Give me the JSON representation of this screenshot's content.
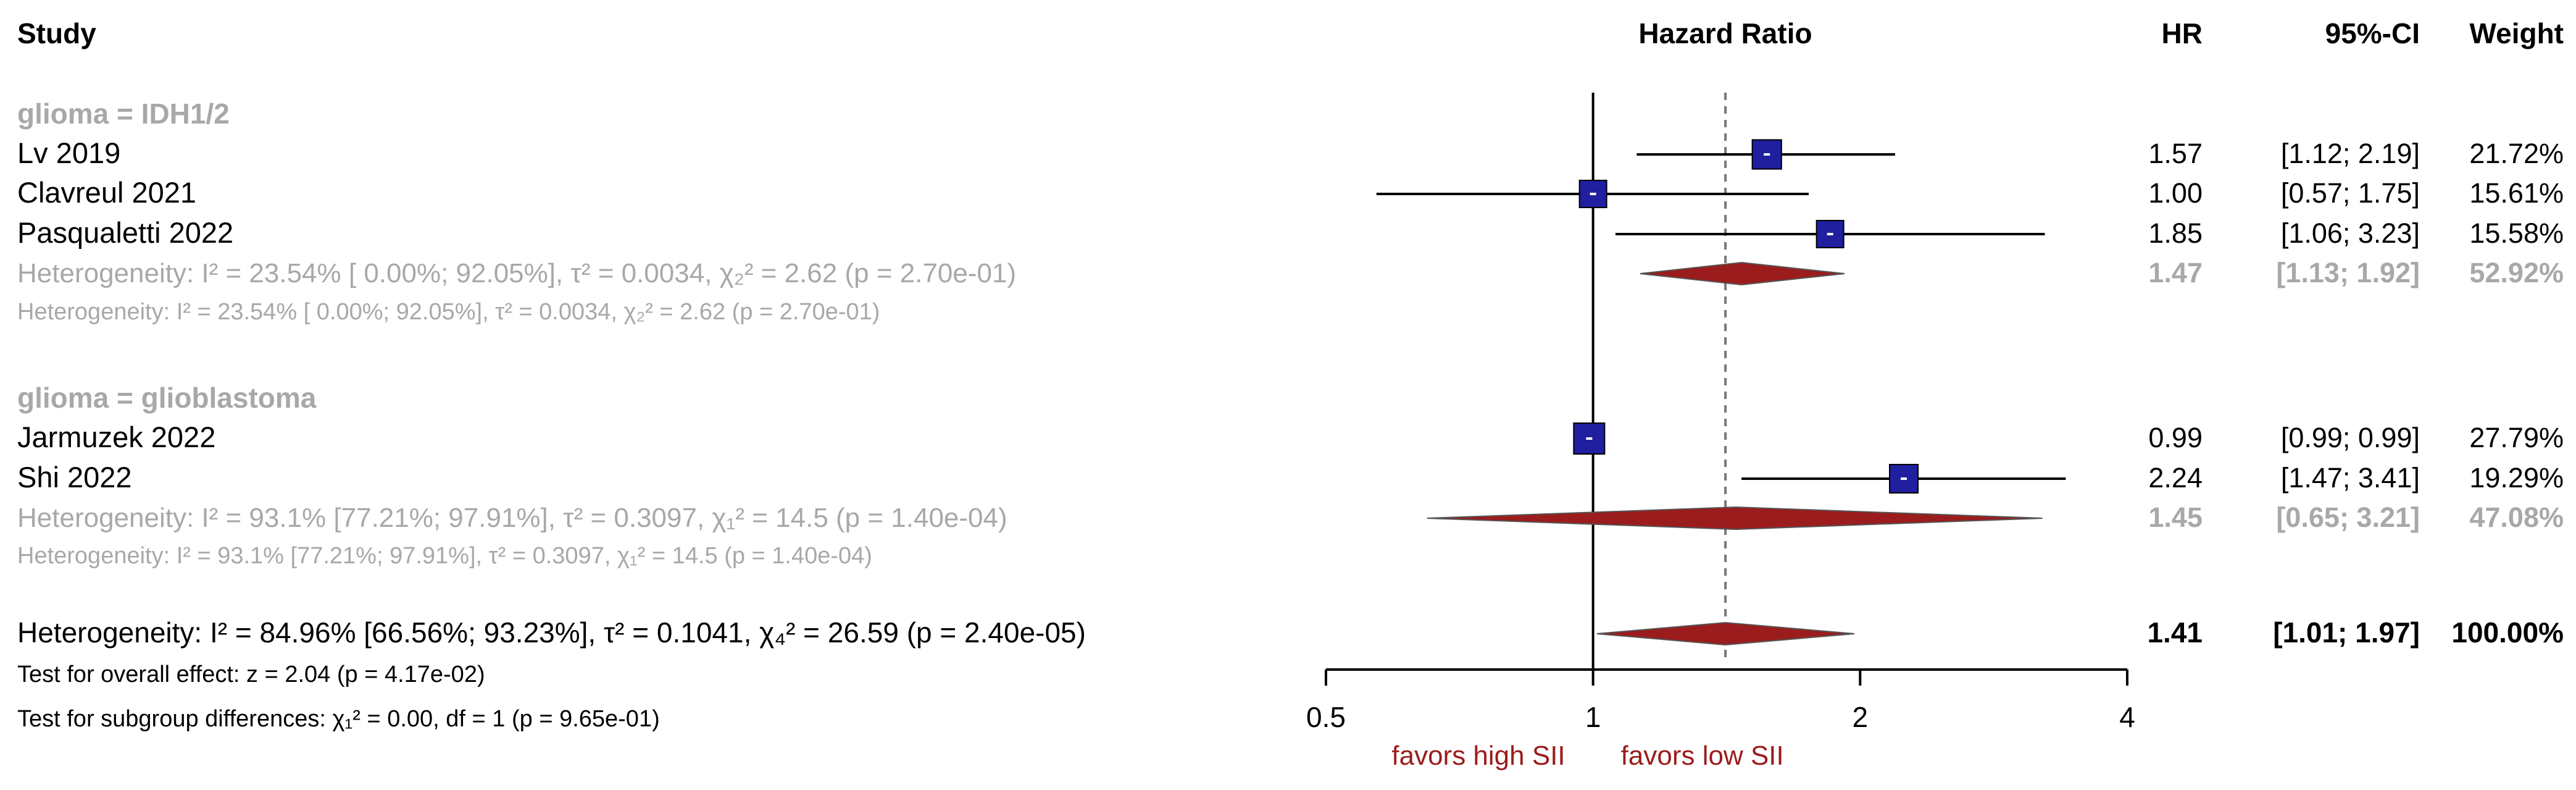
{
  "headers": {
    "study": "Study",
    "effect": "Hazard Ratio",
    "hr": "HR",
    "ci": "95%-CI",
    "weight": "Weight"
  },
  "colors": {
    "square": "#1f1fa0",
    "diamond": "#9b1c1c",
    "grey_text": "#a8a8a8",
    "favor_text": "#9b1c1c"
  },
  "subgroups": [
    {
      "label": "glioma = IDH1/2",
      "het_line": "Heterogeneity: I² = 23.54% [ 0.00%; 92.05%], τ² = 0.0034, χ₂² = 2.62 (p = 2.70e-01)",
      "het_line_small": "Heterogeneity: I² = 23.54% [ 0.00%; 92.05%], τ² = 0.0034, χ₂² = 2.62 (p = 2.70e-01)",
      "summary_hr": "1.47",
      "summary_ci": "[1.13; 1.92]",
      "summary_weight": "52.92%"
    },
    {
      "label": "glioma = glioblastoma",
      "het_line": "Heterogeneity: I² = 93.1% [77.21%; 97.91%], τ² = 0.3097, χ₁² = 14.5 (p = 1.40e-04)",
      "het_line_small": "Heterogeneity: I² = 93.1% [77.21%; 97.91%], τ² = 0.3097, χ₁² = 14.5 (p = 1.40e-04)",
      "summary_hr": "1.45",
      "summary_ci": "[0.65; 3.21]",
      "summary_weight": "47.08%"
    }
  ],
  "studies": [
    {
      "name": "Lv 2019",
      "hr": "1.57",
      "ci": "[1.12; 2.19]",
      "weight": "21.72%"
    },
    {
      "name": "Clavreul 2021",
      "hr": "1.00",
      "ci": "[0.57; 1.75]",
      "weight": "15.61%"
    },
    {
      "name": "Pasqualetti 2022",
      "hr": "1.85",
      "ci": "[1.06; 3.23]",
      "weight": "15.58%"
    },
    {
      "name": "Jarmuzek 2022",
      "hr": "0.99",
      "ci": "[0.99; 0.99]",
      "weight": "27.79%"
    },
    {
      "name": "Shi 2022",
      "hr": "2.24",
      "ci": "[1.47; 3.41]",
      "weight": "19.29%"
    }
  ],
  "overall": {
    "het_line": "Heterogeneity: I² = 84.96% [66.56%; 93.23%], τ² = 0.1041, χ₄² = 26.59 (p = 2.40e-05)",
    "hr": "1.41",
    "ci": "[1.01; 1.97]",
    "weight": "100.00%",
    "test_overall": "Test for overall effect: z = 2.04 (p = 4.17e-02)",
    "test_subgroup": "Test for subgroup differences: χ₁² = 0.00, df = 1 (p = 9.65e-01)"
  },
  "axis": {
    "ticks": [
      "0.5",
      "1",
      "2",
      "4"
    ],
    "favors_left": "favors high SII",
    "favors_right": "favors low SII"
  },
  "chart_data": {
    "type": "forest",
    "xlabel": "Hazard Ratio",
    "xscale": "log",
    "xlim": [
      0.5,
      4
    ],
    "ticks": [
      0.5,
      1,
      2,
      4
    ],
    "null_line": 1,
    "overall_line": 1.41,
    "studies": [
      {
        "name": "Lv 2019",
        "group": "glioma = IDH1/2",
        "hr": 1.57,
        "lower": 1.12,
        "upper": 2.19,
        "weight": 21.72
      },
      {
        "name": "Clavreul 2021",
        "group": "glioma = IDH1/2",
        "hr": 1.0,
        "lower": 0.57,
        "upper": 1.75,
        "weight": 15.61
      },
      {
        "name": "Pasqualetti 2022",
        "group": "glioma = IDH1/2",
        "hr": 1.85,
        "lower": 1.06,
        "upper": 3.23,
        "weight": 15.58
      },
      {
        "name": "Jarmuzek 2022",
        "group": "glioma = glioblastoma",
        "hr": 0.99,
        "lower": 0.99,
        "upper": 0.99,
        "weight": 27.79
      },
      {
        "name": "Shi 2022",
        "group": "glioma = glioblastoma",
        "hr": 2.24,
        "lower": 1.47,
        "upper": 3.41,
        "weight": 19.29
      }
    ],
    "subgroup_summaries": [
      {
        "group": "glioma = IDH1/2",
        "hr": 1.47,
        "lower": 1.13,
        "upper": 1.92,
        "weight": 52.92
      },
      {
        "group": "glioma = glioblastoma",
        "hr": 1.45,
        "lower": 0.65,
        "upper": 3.21,
        "weight": 47.08
      }
    ],
    "overall": {
      "hr": 1.41,
      "lower": 1.01,
      "upper": 1.97,
      "weight": 100.0
    }
  }
}
